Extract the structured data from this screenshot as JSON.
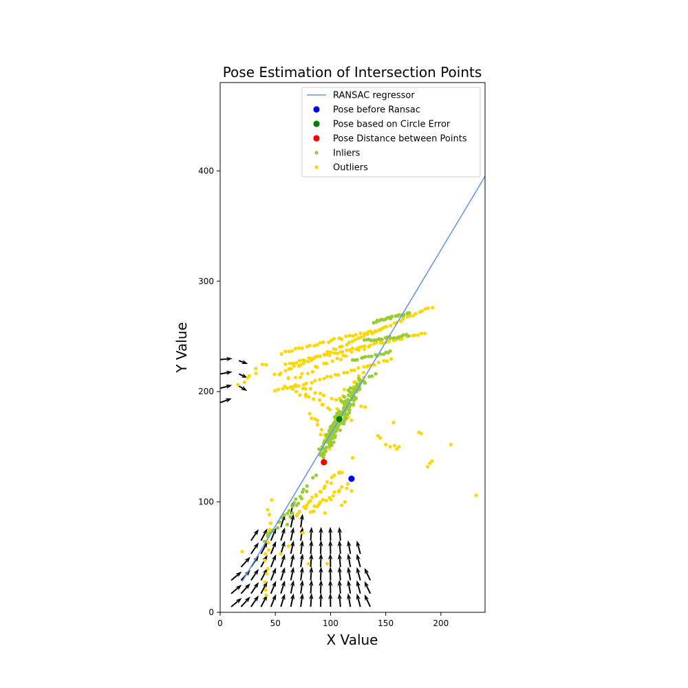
{
  "chart_data": {
    "type": "scatter",
    "title": "Pose Estimation of Intersection Points",
    "xlabel": "X Value",
    "ylabel": "Y Value",
    "xlim": [
      0,
      240
    ],
    "ylim": [
      0,
      480
    ],
    "xticks": [
      0,
      50,
      100,
      150,
      200
    ],
    "yticks": [
      0,
      100,
      200,
      300,
      400
    ],
    "grid": false,
    "legend_position": "top-right",
    "legend": [
      {
        "label": "RANSAC regressor",
        "kind": "line",
        "color": "#6495ed"
      },
      {
        "label": "Pose before Ransac",
        "kind": "marker",
        "color": "#0000ff"
      },
      {
        "label": "Pose based on Circle Error",
        "kind": "marker",
        "color": "#008000"
      },
      {
        "label": "Pose Distance between Points",
        "kind": "marker",
        "color": "#ff0000"
      },
      {
        "label": "Inliers",
        "kind": "dot",
        "color": "#9acd32"
      },
      {
        "label": "Outliers",
        "kind": "dot",
        "color": "#ffd700"
      }
    ],
    "ransac_line": {
      "x": [
        20,
        240
      ],
      "y": [
        28,
        395
      ]
    },
    "poses": [
      {
        "name": "Pose before Ransac",
        "x": 119,
        "y": 121,
        "color": "#0000ff"
      },
      {
        "name": "Pose based on Circle Error",
        "x": 108,
        "y": 175,
        "color": "#008000"
      },
      {
        "name": "Pose Distance between Points",
        "x": 94,
        "y": 136,
        "color": "#ff0000"
      }
    ],
    "inlier_segments": [
      {
        "x0": 90,
        "y0": 140,
        "x1": 128,
        "y1": 210,
        "n": 90,
        "jitter": 4
      },
      {
        "x0": 95,
        "y0": 150,
        "x1": 120,
        "y1": 200,
        "n": 60,
        "jitter": 5
      },
      {
        "x0": 100,
        "y0": 160,
        "x1": 115,
        "y1": 190,
        "n": 40,
        "jitter": 3
      },
      {
        "x0": 40,
        "y0": 65,
        "x1": 75,
        "y1": 110,
        "n": 18,
        "jitter": 2
      },
      {
        "x0": 60,
        "y0": 80,
        "x1": 85,
        "y1": 125,
        "n": 10,
        "jitter": 2
      },
      {
        "x0": 140,
        "y0": 263,
        "x1": 172,
        "y1": 271,
        "n": 22,
        "jitter": 1
      },
      {
        "x0": 130,
        "y0": 246,
        "x1": 170,
        "y1": 251,
        "n": 22,
        "jitter": 1
      },
      {
        "x0": 120,
        "y0": 228,
        "x1": 155,
        "y1": 236,
        "n": 15,
        "jitter": 1
      },
      {
        "x0": 115,
        "y0": 200,
        "x1": 140,
        "y1": 215,
        "n": 10,
        "jitter": 2
      }
    ],
    "outlier_segments": [
      {
        "x0": 50,
        "y0": 215,
        "x1": 192,
        "y1": 277,
        "n": 50,
        "jitter": 1
      },
      {
        "x0": 60,
        "y0": 225,
        "x1": 185,
        "y1": 253,
        "n": 45,
        "jitter": 1
      },
      {
        "x0": 55,
        "y0": 235,
        "x1": 150,
        "y1": 258,
        "n": 30,
        "jitter": 1
      },
      {
        "x0": 50,
        "y0": 200,
        "x1": 155,
        "y1": 229,
        "n": 30,
        "jitter": 1
      },
      {
        "x0": 60,
        "y0": 210,
        "x1": 130,
        "y1": 240,
        "n": 20,
        "jitter": 2
      },
      {
        "x0": 60,
        "y0": 205,
        "x1": 120,
        "y1": 175,
        "n": 20,
        "jitter": 2
      },
      {
        "x0": 70,
        "y0": 205,
        "x1": 130,
        "y1": 185,
        "n": 15,
        "jitter": 2
      },
      {
        "x0": 80,
        "y0": 180,
        "x1": 100,
        "y1": 150,
        "n": 12,
        "jitter": 3
      },
      {
        "x0": 70,
        "y0": 88,
        "x1": 110,
        "y1": 128,
        "n": 22,
        "jitter": 2
      },
      {
        "x0": 80,
        "y0": 90,
        "x1": 115,
        "y1": 115,
        "n": 18,
        "jitter": 2
      },
      {
        "x0": 110,
        "y0": 195,
        "x1": 135,
        "y1": 220,
        "n": 10,
        "jitter": 3
      },
      {
        "x0": 40,
        "y0": 15,
        "x1": 45,
        "y1": 100,
        "n": 15,
        "jitter": 2
      },
      {
        "x0": 18,
        "y0": 205,
        "x1": 40,
        "y1": 226,
        "n": 8,
        "jitter": 2
      }
    ],
    "outlier_points": [
      [
        143,
        160
      ],
      [
        145,
        158
      ],
      [
        150,
        152
      ],
      [
        154,
        150
      ],
      [
        158,
        151
      ],
      [
        160,
        148
      ],
      [
        162,
        150
      ],
      [
        180,
        163
      ],
      [
        182,
        162
      ],
      [
        188,
        132
      ],
      [
        190,
        135
      ],
      [
        192,
        137
      ],
      [
        209,
        152
      ],
      [
        232,
        106
      ],
      [
        157,
        172
      ],
      [
        120,
        140
      ],
      [
        119,
        110
      ],
      [
        95,
        90
      ],
      [
        97,
        44
      ],
      [
        55,
        53
      ],
      [
        20,
        55
      ],
      [
        62,
        60
      ],
      [
        75,
        72
      ],
      [
        80,
        44
      ],
      [
        110,
        97
      ],
      [
        113,
        100
      ]
    ],
    "quiver_bottom": {
      "columns": [
        3,
        10,
        19,
        28,
        37,
        46,
        55,
        64,
        73,
        82,
        91,
        100,
        109,
        118,
        127,
        136
      ],
      "rows": [
        5,
        17,
        29,
        41,
        53,
        65,
        77,
        89
      ],
      "top": [
        3,
        40,
        50,
        65,
        70,
        75,
        85,
        92,
        85,
        75,
        70,
        75,
        75,
        60,
        55,
        35
      ],
      "angle": [
        25,
        40,
        48,
        56,
        62,
        68,
        73,
        78,
        82,
        86,
        88,
        91,
        95,
        100,
        105,
        115
      ],
      "length": 20
    },
    "quiver_side": {
      "x": 0,
      "y": [
        190,
        203,
        216,
        229
      ],
      "angle": [
        20,
        15,
        10,
        5
      ],
      "length": 18
    },
    "quiver_side2": {
      "x": 17,
      "y": [
        205,
        216,
        228
      ],
      "angle": [
        -30,
        -25,
        -20
      ],
      "length": 14
    }
  }
}
